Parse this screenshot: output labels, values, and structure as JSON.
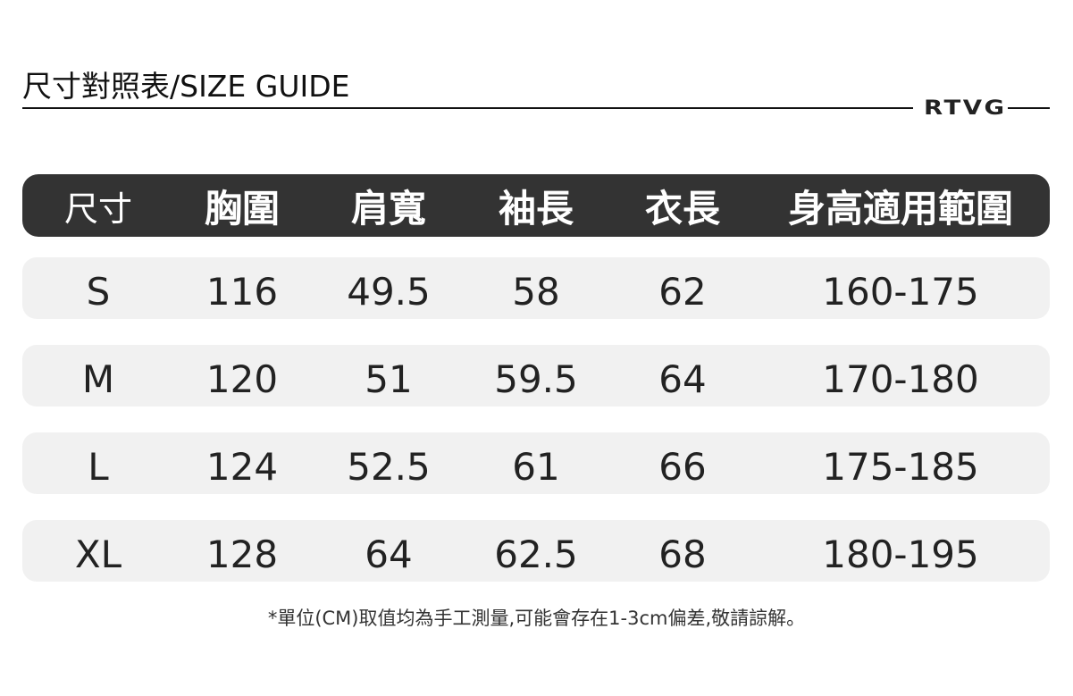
{
  "title": "尺寸對照表/SIZE GUIDE",
  "logo": "RTVG",
  "table": {
    "headers": [
      "尺寸",
      "胸圍",
      "肩寬",
      "袖長",
      "衣長",
      "身高適用範圍"
    ],
    "rows": [
      [
        "S",
        "116",
        "49.5",
        "58",
        "62",
        "160-175"
      ],
      [
        "M",
        "120",
        "51",
        "59.5",
        "64",
        "170-180"
      ],
      [
        "L",
        "124",
        "52.5",
        "61",
        "66",
        "175-185"
      ],
      [
        "XL",
        "128",
        "64",
        "62.5",
        "68",
        "180-195"
      ]
    ]
  },
  "note": "*單位(CM)取值均為手工測量,可能會存在1-3cm偏差,敬請諒解。"
}
